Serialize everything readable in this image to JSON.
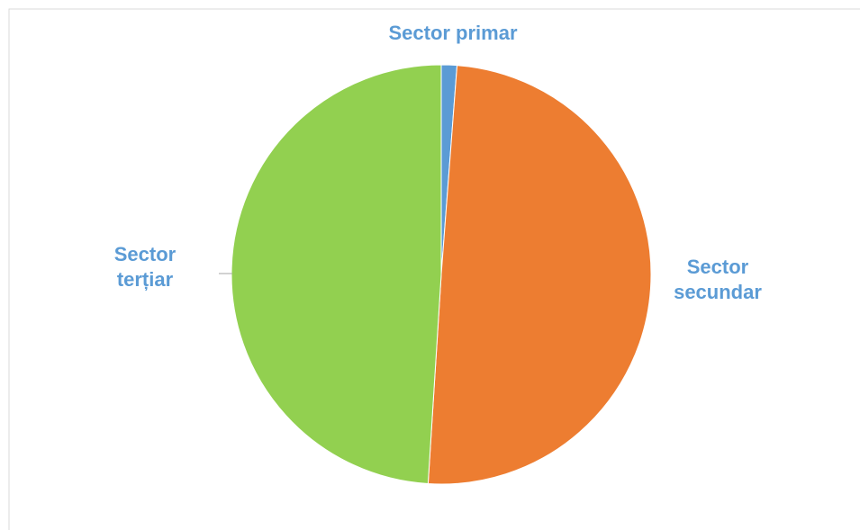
{
  "chart_data": {
    "type": "pie",
    "title": "",
    "start_angle_deg": 0,
    "direction": "clockwise",
    "label_color": "#5B9BD5",
    "series": [
      {
        "categories": [
          "Sector primar",
          "Sector secundar",
          "Sector terțiar"
        ],
        "values": [
          1.2,
          49.8,
          49.0
        ],
        "colors": [
          "#5B9BD5",
          "#ED7D31",
          "#92D050"
        ]
      }
    ],
    "labels": [
      {
        "lines": [
          "Sector primar"
        ]
      },
      {
        "lines": [
          "Sector",
          "secundar"
        ]
      },
      {
        "lines": [
          "Sector",
          "terțiar"
        ]
      }
    ],
    "border_color": "#D9D9D9"
  }
}
